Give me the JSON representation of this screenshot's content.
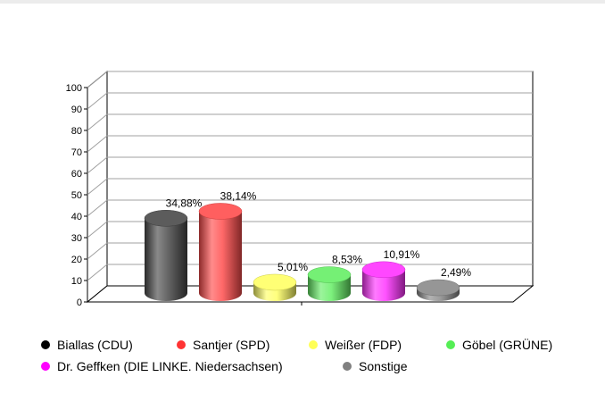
{
  "chart_data": {
    "type": "bar",
    "categories": [
      "Biallas (CDU)",
      "Santjer (SPD)",
      "Weißer (FDP)",
      "Göbel (GRÜNE)",
      "Dr. Geffken (DIE LINKE. Niedersachsen)",
      "Sonstige"
    ],
    "values": [
      34.88,
      38.14,
      5.01,
      8.53,
      10.91,
      2.49
    ],
    "data_labels": [
      "34,88%",
      "38,14%",
      "5,01%",
      "8,53%",
      "10,91%",
      "2,49%"
    ],
    "colors": [
      "#4a4a4a",
      "#ff4d4d",
      "#ffff66",
      "#66ee66",
      "#ff33ff",
      "#8a8a8a"
    ],
    "y_ticks": [
      "0",
      "10",
      "20",
      "30",
      "40",
      "50",
      "60",
      "70",
      "80",
      "90",
      "100"
    ],
    "ylim": [
      0,
      100
    ],
    "grid": true,
    "legend": {
      "position": "bottom",
      "items": [
        {
          "label": "Biallas (CDU)",
          "color": "#000000"
        },
        {
          "label": "Santjer (SPD)",
          "color": "#ff3333"
        },
        {
          "label": "Weißer (FDP)",
          "color": "#ffff55"
        },
        {
          "label": "Göbel (GRÜNE)",
          "color": "#55ee55"
        },
        {
          "label": "Dr. Geffken (DIE LINKE. Niedersachsen)",
          "color": "#ff00ff"
        },
        {
          "label": "Sonstige",
          "color": "#808080"
        }
      ]
    }
  }
}
